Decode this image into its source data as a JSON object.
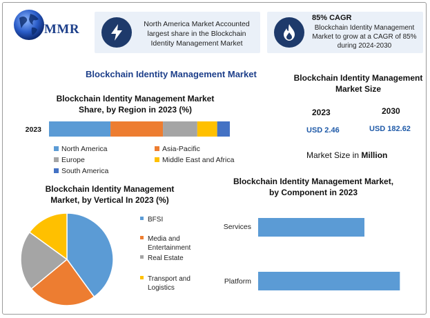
{
  "logo": {
    "text": "MMR"
  },
  "headline1": {
    "text": "North America Market Accounted largest share in the Blockchain Identity Management Market"
  },
  "headline2": {
    "title": "85% CAGR",
    "text": "Blockchain Identity Management Market to grow at a CAGR of 85% during 2024-2030"
  },
  "main_title": "Blockchain Identity Management Market",
  "size_panel": {
    "title": "Blockchain Identity Management Market Size",
    "year1": "2023",
    "year2": "2030",
    "value1": "USD 2.46",
    "value2": "USD 182.62",
    "caption_prefix": "Market Size in ",
    "caption_bold": "Million"
  },
  "colors": {
    "north_america": "#5b9bd5",
    "asia_pacific": "#ed7d31",
    "europe": "#a5a5a5",
    "mea": "#ffc000",
    "south_america": "#4472c4",
    "navy": "#1e3a6b"
  },
  "chart_data": [
    {
      "type": "bar",
      "orientation": "horizontal-stacked",
      "title": "Blockchain Identity Management Market Share, by Region in 2023 (%)",
      "categories": [
        "2023"
      ],
      "series": [
        {
          "name": "North America",
          "values": [
            34
          ]
        },
        {
          "name": "Asia-Pacific",
          "values": [
            29
          ]
        },
        {
          "name": "Europe",
          "values": [
            19
          ]
        },
        {
          "name": "Middle East and Africa",
          "values": [
            11
          ]
        },
        {
          "name": "South America",
          "values": [
            7
          ]
        }
      ],
      "legend": "bottom"
    },
    {
      "type": "pie",
      "title": "Blockchain Identity Management Market, by Vertical In 2023 (%)",
      "labels": [
        "BFSI",
        "Media and Entertainment",
        "Real Estate",
        "Transport and Logistics"
      ],
      "values": [
        40,
        24,
        21,
        15
      ],
      "legend": "right"
    },
    {
      "type": "bar",
      "orientation": "horizontal",
      "title": "Blockchain Identity Management Market, by Component in 2023",
      "categories": [
        "Services",
        "Platform"
      ],
      "values": [
        42,
        56
      ],
      "legend": "none"
    }
  ]
}
